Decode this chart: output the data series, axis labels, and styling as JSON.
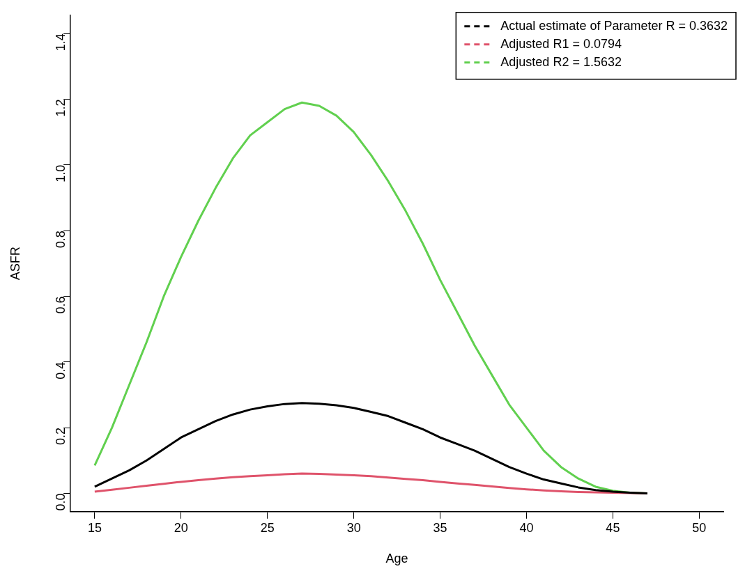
{
  "chart_data": {
    "type": "line",
    "xlabel": "Age",
    "ylabel": "ASFR",
    "xlim": [
      13.6,
      51.4
    ],
    "ylim": [
      -0.056,
      1.456
    ],
    "xticks": [
      15,
      20,
      25,
      30,
      35,
      40,
      45,
      50
    ],
    "yticks": [
      {
        "value": 0,
        "label": "0.0"
      },
      0.2,
      0.4,
      0.6,
      0.8,
      {
        "value": 1,
        "label": "1.0"
      },
      1.2,
      1.4
    ],
    "grid": false,
    "legend": "top right",
    "marker": "none",
    "line_style": "solid",
    "x": [
      15,
      16,
      17,
      18,
      19,
      20,
      21,
      22,
      23,
      24,
      25,
      26,
      27,
      28,
      29,
      30,
      31,
      32,
      33,
      34,
      35,
      36,
      37,
      38,
      39,
      40,
      41,
      42,
      43,
      44,
      45,
      46,
      47
    ],
    "series": [
      {
        "name": "Actual estimate of Parameter R = 0.3632",
        "color": "#000000",
        "values": [
          0.02,
          0.045,
          0.07,
          0.1,
          0.135,
          0.17,
          0.195,
          0.22,
          0.24,
          0.255,
          0.265,
          0.272,
          0.275,
          0.273,
          0.268,
          0.26,
          0.248,
          0.235,
          0.215,
          0.195,
          0.17,
          0.15,
          0.13,
          0.105,
          0.08,
          0.06,
          0.042,
          0.03,
          0.018,
          0.01,
          0.005,
          0.002,
          0
        ]
      },
      {
        "name": "Adjusted R1 = 0.0794",
        "color": "#df536b",
        "values": [
          0.005,
          0.011,
          0.017,
          0.023,
          0.029,
          0.035,
          0.04,
          0.045,
          0.049,
          0.052,
          0.055,
          0.058,
          0.06,
          0.059,
          0.057,
          0.055,
          0.052,
          0.048,
          0.044,
          0.04,
          0.035,
          0.03,
          0.026,
          0.021,
          0.016,
          0.012,
          0.009,
          0.006,
          0.004,
          0.003,
          0.002,
          0.001,
          0
        ]
      },
      {
        "name": "Adjusted R2 = 1.5632",
        "color": "#61d04f",
        "values": [
          0.085,
          0.2,
          0.33,
          0.46,
          0.6,
          0.72,
          0.83,
          0.93,
          1.02,
          1.09,
          1.13,
          1.17,
          1.19,
          1.18,
          1.15,
          1.1,
          1.03,
          0.95,
          0.86,
          0.76,
          0.65,
          0.55,
          0.45,
          0.36,
          0.27,
          0.2,
          0.13,
          0.08,
          0.045,
          0.02,
          0.008,
          0.002,
          0
        ]
      }
    ]
  }
}
